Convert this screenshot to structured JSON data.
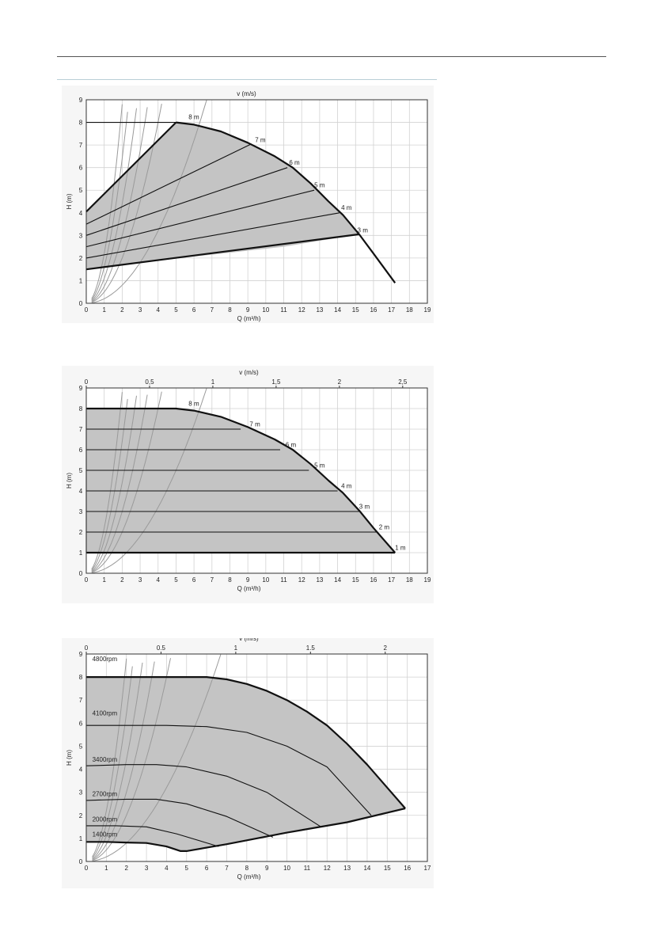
{
  "page": {
    "accent_rule": "#b9cfd6"
  },
  "chart_data": [
    {
      "type": "line",
      "xlabel": "Q (m³/h)",
      "ylabel": "H (m)",
      "top_axis_label": "v (m/s)",
      "xlim": [
        0,
        19
      ],
      "ylim": [
        0,
        9
      ],
      "x_ticks": [
        0,
        1,
        2,
        3,
        4,
        5,
        6,
        7,
        8,
        9,
        10,
        11,
        12,
        13,
        14,
        15,
        16,
        17,
        18,
        19
      ],
      "y_ticks": [
        0,
        1,
        2,
        3,
        4,
        5,
        6,
        7,
        8,
        9
      ],
      "top_ticks": [],
      "grid": true,
      "fill_color": "#c4c4c4",
      "envelope": [
        [
          0,
          1.5
        ],
        [
          0,
          4.05
        ],
        [
          5,
          8
        ],
        [
          6,
          7.9
        ],
        [
          7.5,
          7.6
        ],
        [
          9,
          7.1
        ],
        [
          10.5,
          6.5
        ],
        [
          11.5,
          6.0
        ],
        [
          12.5,
          5.3
        ],
        [
          13.5,
          4.5
        ],
        [
          14.3,
          3.9
        ],
        [
          15.2,
          3.05
        ],
        [
          11,
          2.5
        ],
        [
          7,
          2.15
        ],
        [
          3,
          1.8
        ],
        [
          0,
          1.5
        ]
      ],
      "lines": [
        {
          "points": [
            [
              0,
              8
            ],
            [
              5,
              8
            ]
          ]
        },
        {
          "points": [
            [
              5,
              8
            ],
            [
              6,
              7.9
            ],
            [
              7.5,
              7.6
            ],
            [
              9,
              7.1
            ],
            [
              10.5,
              6.5
            ],
            [
              11.5,
              6.0
            ],
            [
              12.5,
              5.3
            ],
            [
              13.5,
              4.5
            ],
            [
              14.3,
              3.9
            ],
            [
              15.2,
              3.05
            ],
            [
              16,
              2.2
            ],
            [
              17.2,
              0.9
            ]
          ],
          "bold": true
        },
        {
          "points": [
            [
              0,
              1.5
            ],
            [
              15.2,
              3.05
            ]
          ],
          "bold": true
        },
        {
          "points": [
            [
              0,
              4.05
            ],
            [
              5,
              8
            ]
          ],
          "bold": true
        },
        {
          "points": [
            [
              0,
              3.5
            ],
            [
              9.2,
              7.05
            ]
          ]
        },
        {
          "points": [
            [
              0,
              3.0
            ],
            [
              11.2,
              6.0
            ]
          ]
        },
        {
          "points": [
            [
              0,
              2.5
            ],
            [
              12.7,
              5.0
            ]
          ]
        },
        {
          "points": [
            [
              0,
              2.0
            ],
            [
              14.1,
              4.0
            ]
          ]
        }
      ],
      "system_curves": [
        [
          0.2,
          0.45
        ],
        [
          0.5,
          0.8
        ],
        [
          0.75,
          1.1
        ],
        [
          1.1,
          1.75
        ],
        [
          1.6,
          2.9
        ],
        [
          2.2,
          4.5
        ]
      ],
      "curve_labels": [
        {
          "text": "8 m",
          "x": 5.7,
          "y": 8.1
        },
        {
          "text": "7 m",
          "x": 9.4,
          "y": 7.1
        },
        {
          "text": "6 m",
          "x": 11.3,
          "y": 6.1
        },
        {
          "text": "5 m",
          "x": 12.7,
          "y": 5.1
        },
        {
          "text": "4 m",
          "x": 14.2,
          "y": 4.1
        },
        {
          "text": "3 m",
          "x": 15.1,
          "y": 3.1
        }
      ]
    },
    {
      "type": "line",
      "xlabel": "Q (m³/h)",
      "ylabel": "H (m)",
      "top_axis_label": "v (m/s)",
      "xlim": [
        0,
        19
      ],
      "ylim": [
        0,
        9
      ],
      "x_ticks": [
        0,
        1,
        2,
        3,
        4,
        5,
        6,
        7,
        8,
        9,
        10,
        11,
        12,
        13,
        14,
        15,
        16,
        17,
        18,
        19
      ],
      "y_ticks": [
        0,
        1,
        2,
        3,
        4,
        5,
        6,
        7,
        8,
        9
      ],
      "top_ticks": [
        "0",
        "0,5",
        "1",
        "1,5",
        "2",
        "2,5"
      ],
      "top_tick_q_per_unit": 7.05,
      "grid": true,
      "fill_color": "#c4c4c4",
      "envelope": [
        [
          0,
          1
        ],
        [
          0,
          8
        ],
        [
          5,
          8
        ],
        [
          6,
          7.9
        ],
        [
          7.5,
          7.6
        ],
        [
          9,
          7.1
        ],
        [
          10.5,
          6.5
        ],
        [
          11.5,
          6.0
        ],
        [
          12.5,
          5.3
        ],
        [
          13.5,
          4.5
        ],
        [
          14.3,
          3.9
        ],
        [
          15.2,
          3.05
        ],
        [
          16,
          2.2
        ],
        [
          17.2,
          1.0
        ],
        [
          0,
          1
        ]
      ],
      "lines": [
        {
          "points": [
            [
              0,
              8
            ],
            [
              5,
              8
            ],
            [
              6,
              7.9
            ],
            [
              7.5,
              7.6
            ],
            [
              9,
              7.1
            ],
            [
              10.5,
              6.5
            ],
            [
              11.5,
              6.0
            ],
            [
              12.5,
              5.3
            ],
            [
              13.5,
              4.5
            ],
            [
              14.3,
              3.9
            ],
            [
              15.2,
              3.05
            ],
            [
              16,
              2.2
            ],
            [
              17.2,
              1.0
            ]
          ],
          "bold": true
        },
        {
          "points": [
            [
              0,
              1
            ],
            [
              17.2,
              1
            ]
          ],
          "bold": true
        },
        {
          "points": [
            [
              0,
              8
            ],
            [
              0,
              1
            ]
          ]
        },
        {
          "points": [
            [
              0,
              7
            ],
            [
              8.6,
              7
            ]
          ]
        },
        {
          "points": [
            [
              0,
              6
            ],
            [
              10.8,
              6
            ]
          ]
        },
        {
          "points": [
            [
              0,
              5
            ],
            [
              12.4,
              5
            ]
          ]
        },
        {
          "points": [
            [
              0,
              4
            ],
            [
              14,
              4
            ]
          ]
        },
        {
          "points": [
            [
              0,
              3
            ],
            [
              15.2,
              3
            ]
          ]
        },
        {
          "points": [
            [
              0,
              2
            ],
            [
              16.2,
              2
            ]
          ]
        }
      ],
      "system_curves": [
        [
          0.2,
          0.45
        ],
        [
          0.5,
          0.8
        ],
        [
          0.75,
          1.1
        ],
        [
          1.1,
          1.75
        ],
        [
          1.6,
          2.9
        ],
        [
          2.2,
          4.5
        ]
      ],
      "curve_labels": [
        {
          "text": "8 m",
          "x": 5.7,
          "y": 8.1
        },
        {
          "text": "7 m",
          "x": 9.1,
          "y": 7.1
        },
        {
          "text": "6 m",
          "x": 11.1,
          "y": 6.1
        },
        {
          "text": "5 m",
          "x": 12.7,
          "y": 5.1
        },
        {
          "text": "4 m",
          "x": 14.2,
          "y": 4.1
        },
        {
          "text": "3 m",
          "x": 15.2,
          "y": 3.1
        },
        {
          "text": "2 m",
          "x": 16.3,
          "y": 2.1
        },
        {
          "text": "1 m",
          "x": 17.2,
          "y": 1.1
        }
      ]
    },
    {
      "type": "line",
      "xlabel": "Q (m³/h)",
      "ylabel": "H (m)",
      "top_axis_label": "v (m/s)",
      "xlim": [
        0,
        17
      ],
      "ylim": [
        0,
        9
      ],
      "x_ticks": [
        0,
        1,
        2,
        3,
        4,
        5,
        6,
        7,
        8,
        9,
        10,
        11,
        12,
        13,
        14,
        15,
        16,
        17
      ],
      "y_ticks": [
        0,
        1,
        2,
        3,
        4,
        5,
        6,
        7,
        8,
        9
      ],
      "top_ticks": [
        "0",
        "0.5",
        "1",
        "1.5",
        "2"
      ],
      "top_tick_q_per_unit": 7.45,
      "grid": true,
      "fill_color": "#c4c4c4",
      "envelope": [
        [
          0,
          8
        ],
        [
          6,
          8
        ],
        [
          7,
          7.9
        ],
        [
          8,
          7.7
        ],
        [
          9,
          7.4
        ],
        [
          10,
          7.0
        ],
        [
          11,
          6.5
        ],
        [
          12,
          5.9
        ],
        [
          13,
          5.1
        ],
        [
          14,
          4.2
        ],
        [
          15,
          3.2
        ],
        [
          15.9,
          2.3
        ],
        [
          13,
          1.7
        ],
        [
          10,
          1.25
        ],
        [
          7,
          0.75
        ],
        [
          5,
          0.45
        ],
        [
          4.7,
          0.45
        ],
        [
          4,
          0.65
        ],
        [
          3,
          0.8
        ],
        [
          2,
          0.82
        ],
        [
          1,
          0.85
        ],
        [
          0,
          0.85
        ],
        [
          0,
          8
        ]
      ],
      "lines": [
        {
          "points": [
            [
              0,
              8
            ],
            [
              6,
              8
            ],
            [
              7,
              7.9
            ],
            [
              8,
              7.7
            ],
            [
              9,
              7.4
            ],
            [
              10,
              7.0
            ],
            [
              11,
              6.5
            ],
            [
              12,
              5.9
            ],
            [
              13,
              5.1
            ],
            [
              14,
              4.2
            ],
            [
              15,
              3.2
            ],
            [
              15.9,
              2.3
            ]
          ],
          "bold": true
        },
        {
          "points": [
            [
              0,
              5.9
            ],
            [
              4,
              5.9
            ],
            [
              6,
              5.85
            ],
            [
              8,
              5.6
            ],
            [
              10,
              5.0
            ],
            [
              12,
              4.1
            ],
            [
              14.2,
              2.0
            ]
          ]
        },
        {
          "points": [
            [
              0,
              4.15
            ],
            [
              2,
              4.2
            ],
            [
              3.5,
              4.2
            ],
            [
              5,
              4.1
            ],
            [
              7,
              3.7
            ],
            [
              9,
              3.0
            ],
            [
              11.7,
              1.5
            ]
          ]
        },
        {
          "points": [
            [
              0,
              2.65
            ],
            [
              2,
              2.7
            ],
            [
              3.5,
              2.7
            ],
            [
              5,
              2.5
            ],
            [
              7,
              1.95
            ],
            [
              9.3,
              1.05
            ]
          ]
        },
        {
          "points": [
            [
              0,
              1.55
            ],
            [
              1.5,
              1.55
            ],
            [
              3,
              1.5
            ],
            [
              4.5,
              1.2
            ],
            [
              6.6,
              0.65
            ]
          ]
        },
        {
          "points": [
            [
              0,
              0.85
            ],
            [
              1,
              0.85
            ],
            [
              2,
              0.82
            ],
            [
              3,
              0.8
            ],
            [
              4,
              0.65
            ],
            [
              4.7,
              0.45
            ],
            [
              5,
              0.45
            ],
            [
              7,
              0.75
            ],
            [
              10,
              1.25
            ],
            [
              13,
              1.7
            ],
            [
              15.9,
              2.3
            ]
          ],
          "bold": true
        }
      ],
      "system_curves": [
        [
          0.2,
          0.45
        ],
        [
          0.5,
          0.8
        ],
        [
          0.75,
          1.1
        ],
        [
          1.1,
          1.75
        ],
        [
          1.6,
          2.9
        ],
        [
          2.2,
          4.5
        ]
      ],
      "curve_labels": [
        {
          "text": "4800rpm",
          "x": 0.3,
          "y": 8.65
        },
        {
          "text": "4100rpm",
          "x": 0.3,
          "y": 6.3
        },
        {
          "text": "3400rpm",
          "x": 0.3,
          "y": 4.3
        },
        {
          "text": "2700rpm",
          "x": 0.3,
          "y": 2.8
        },
        {
          "text": "2000rpm",
          "x": 0.3,
          "y": 1.7
        },
        {
          "text": "1400rpm",
          "x": 0.3,
          "y": 1.05
        }
      ]
    }
  ]
}
